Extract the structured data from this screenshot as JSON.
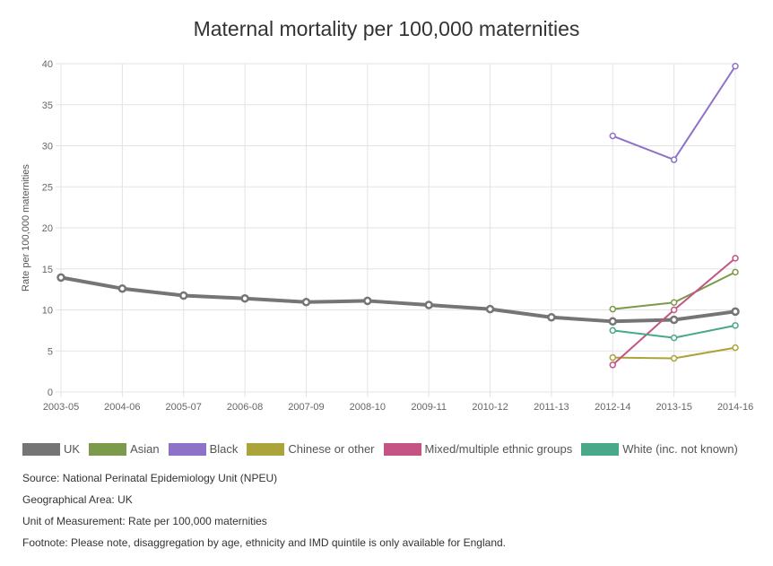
{
  "chart_data": {
    "type": "line",
    "title": "Maternal mortality per 100,000 maternities",
    "xlabel": "",
    "ylabel": "Rate per 100,000 maternities",
    "ylim": [
      0,
      40
    ],
    "yticks": [
      0,
      5,
      10,
      15,
      20,
      25,
      30,
      35,
      40
    ],
    "grid": true,
    "legend_position": "bottom",
    "categories": [
      "2003-05",
      "2004-06",
      "2005-07",
      "2006-08",
      "2007-09",
      "2008-10",
      "2009-11",
      "2010-12",
      "2011-13",
      "2012-14",
      "2013-15",
      "2014-16"
    ],
    "series": [
      {
        "name": "UK",
        "color": "#757575",
        "values": [
          13.95,
          12.6,
          11.75,
          11.4,
          10.95,
          11.1,
          10.6,
          10.1,
          9.1,
          8.6,
          8.8,
          9.8
        ]
      },
      {
        "name": "Asian",
        "color": "#7b9a4a",
        "values": [
          null,
          null,
          null,
          null,
          null,
          null,
          null,
          null,
          null,
          10.1,
          10.9,
          14.6
        ]
      },
      {
        "name": "Black",
        "color": "#8e72c9",
        "values": [
          null,
          null,
          null,
          null,
          null,
          null,
          null,
          null,
          null,
          31.2,
          28.3,
          39.7
        ]
      },
      {
        "name": "Chinese or other",
        "color": "#aaa43a",
        "values": [
          null,
          null,
          null,
          null,
          null,
          null,
          null,
          null,
          null,
          4.2,
          4.1,
          5.4
        ]
      },
      {
        "name": "Mixed/multiple ethnic groups",
        "color": "#c45484",
        "values": [
          null,
          null,
          null,
          null,
          null,
          null,
          null,
          null,
          null,
          3.3,
          10.0,
          16.3
        ]
      },
      {
        "name": "White (inc. not known)",
        "color": "#49a88a",
        "values": [
          null,
          null,
          null,
          null,
          null,
          null,
          null,
          null,
          null,
          7.5,
          6.6,
          8.1
        ]
      }
    ]
  },
  "footer": {
    "source": "Source: National Perinatal Epidemiology Unit (NPEU)",
    "area": "Geographical Area: UK",
    "unit": "Unit of Measurement: Rate per 100,000 maternities",
    "footnote": "Footnote: Please note, disaggregation by age, ethnicity and IMD quintile is only available for England."
  }
}
